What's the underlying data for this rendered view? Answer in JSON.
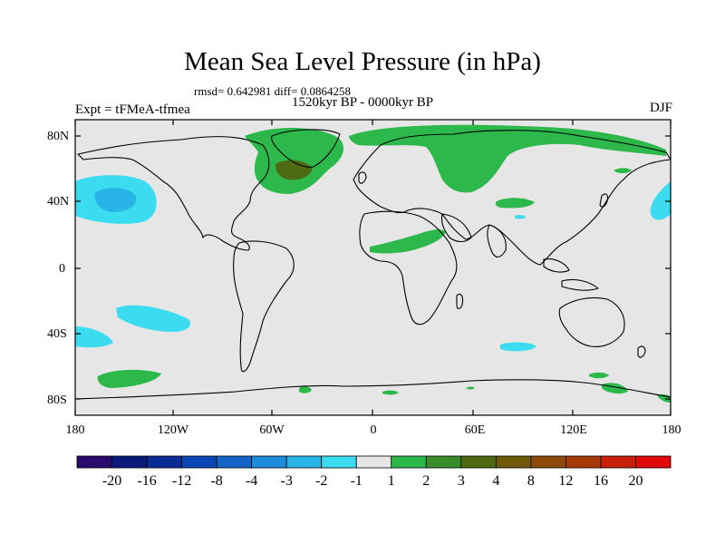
{
  "title": "Mean Sea Level Pressure (in hPa)",
  "stats_line": "rmsd= 0.642981 diff= 0.0864258",
  "period": "1520kyr BP - 0000kyr BP",
  "experiment": "Expt = tFMeA-tfmea",
  "season": "DJF",
  "y_axis": {
    "ticks": [
      "80N",
      "40N",
      "0",
      "40S",
      "80S"
    ]
  },
  "x_axis": {
    "ticks": [
      "180",
      "120W",
      "60W",
      "0",
      "60E",
      "120E",
      "180"
    ]
  },
  "colorbar": {
    "colors": [
      "#2a0a6e",
      "#0a1a7a",
      "#0a2a96",
      "#0a46b4",
      "#1464c8",
      "#1e8cdc",
      "#28b4e6",
      "#3cdcf0",
      "#e6e6e6",
      "#2db84b",
      "#3a8c2a",
      "#4e6a12",
      "#6e5a0a",
      "#8c4a0a",
      "#a83a0a",
      "#c8200a",
      "#e00a0a"
    ],
    "labels": [
      "-20",
      "-16",
      "-12",
      "-8",
      "-4",
      "-3",
      "-2",
      "-1",
      "1",
      "2",
      "3",
      "4",
      "8",
      "12",
      "16",
      "20"
    ]
  },
  "map_regions": [
    {
      "name": "greenland-anomaly",
      "color": "#2db84b"
    },
    {
      "name": "greenland-strong-anomaly",
      "color": "#4e6a12"
    },
    {
      "name": "siberia-anomaly",
      "color": "#2db84b"
    },
    {
      "name": "north-pacific-anomaly",
      "color": "#3cdcf0"
    },
    {
      "name": "north-pacific-core",
      "color": "#28b4e6"
    }
  ]
}
